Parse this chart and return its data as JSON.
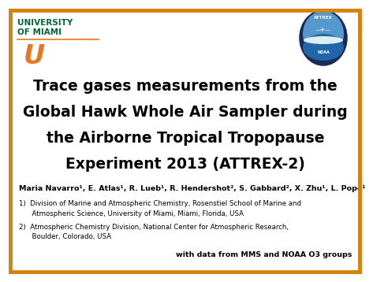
{
  "background_color": "#ffffff",
  "border_color": "#d4820a",
  "title_line1": "Trace gases measurements from the",
  "title_line2": "Global Hawk Whole Air Sampler during",
  "title_line3": "the Airborne Tropical Tropopause",
  "title_line4": "Experiment 2013 (ATTREX-2)",
  "title_color": "#000000",
  "title_fontsize": 13.5,
  "univ_text1": "UNIVERSITY",
  "univ_text2": "OF MIAMI",
  "univ_color": "#006633",
  "univ_fontsize": 7.5,
  "orange_color": "#e87722",
  "authors_text": "Maria Navarro¹, E. Atlas¹, R. Lueb¹, R. Hendershot², S. Gabbard², X. Zhu¹, L. Pope¹",
  "authors_fontsize": 6.8,
  "affil1_prefix": "1)  ",
  "affil1_line1": "Division of Marine and Atmospheric Chemistry, Rosenstiel School of Marine and",
  "affil1_line2": "      Atmospheric Science, University of Miami, Miami, Florida, USA",
  "affil2_prefix": "2)  ",
  "affil2_line1": "Atmospheric Chemistry Division, National Center for Atmospheric Research,",
  "affil2_line2": "      Boulder, Colorado, USA",
  "affil_fontsize": 6.2,
  "note_text": "with data from MMS and NOAA O3 groups",
  "note_fontsize": 6.8,
  "note_color": "#000000"
}
